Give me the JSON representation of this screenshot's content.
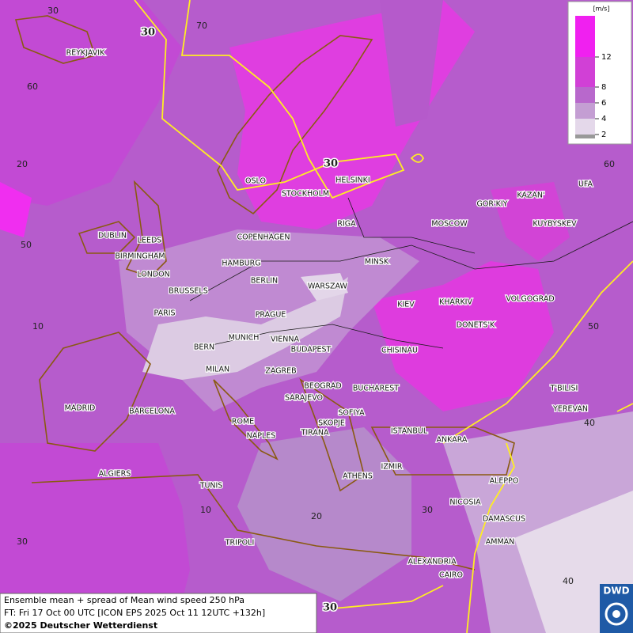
{
  "legend": {
    "unit": "[m/s]",
    "ticks": [
      2,
      4,
      6,
      8,
      12
    ]
  },
  "caption": [
    "Ensemble mean + spread of Mean wind speed 250 hPa",
    "FT: Fri 17 Oct 00 UTC [ICON EPS 2025 Oct 11 12UTC +132h]",
    "©2025 Deutscher Wetterdienst"
  ],
  "logo": "DWD",
  "grid_labels": [
    "30",
    "70",
    "60",
    "20",
    "50",
    "10",
    "30",
    "10",
    "20",
    "30",
    "40",
    "50",
    "60",
    "40"
  ],
  "contour_labels": [
    "30",
    "30",
    "30"
  ],
  "cities": [
    "REYKJAVIK",
    "OSLO",
    "STOCKHOLM",
    "HELSINKI",
    "RIGA",
    "MOSCOW",
    "GOR'KIY",
    "KAZAN'",
    "UFA",
    "KUYBYSKEV",
    "DUBLIN",
    "LEEDS",
    "BIRMINGHAM",
    "LONDON",
    "COPENHAGEN",
    "HAMBURG",
    "BERLIN",
    "MINSK",
    "WARSZAW",
    "BRUSSELS",
    "KIEV",
    "KHARKIV",
    "VOLGOGRAD",
    "PARIS",
    "PRAGUE",
    "DONETS'K",
    "MUNICH",
    "VIENNA",
    "BERN",
    "BUDAPEST",
    "CHISINAU",
    "MILAN",
    "ZAGREB",
    "BEOGRAD",
    "BUCHAREST",
    "T'BILISI",
    "SARAJEVO",
    "MADRID",
    "BARCELONA",
    "YEREVAN",
    "SOFIYA",
    "ROME",
    "SKOPJE",
    "ISTANBUL",
    "TIRANA",
    "NAPLES",
    "ANKARA",
    "ALGIERS",
    "IZMIR",
    "ATHENS",
    "ALEPPO",
    "TUNIS",
    "NICOSIA",
    "DAMASCUS",
    "TRIPOLI",
    "AMMAN",
    "ALEXANDRIA",
    "CAIRO"
  ]
}
